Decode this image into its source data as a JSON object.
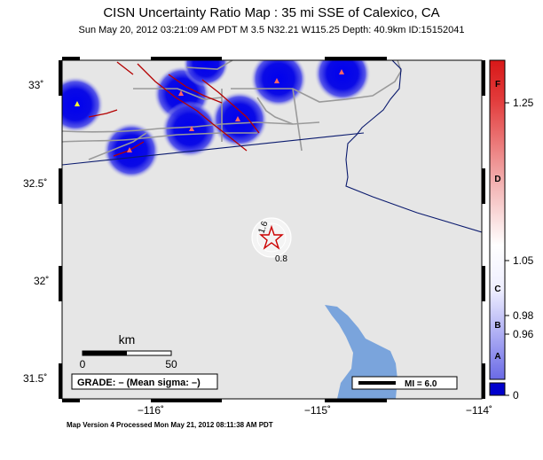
{
  "header": {
    "title": "CISN Uncertainty Ratio Map : 35 mi SSE of Calexico, CA",
    "subtitle": "Sun May 20, 2012 03:21:09 AM PDT   M 3.5   N32.21 W115.25   Depth: 40.9km   ID:15152041"
  },
  "axes": {
    "lat_ticks": [
      "33˚",
      "32.5˚",
      "32˚",
      "31.5˚"
    ],
    "lon_ticks": [
      "−116˚",
      "−115˚",
      "−114˚"
    ]
  },
  "scale_bar": {
    "title": "km",
    "start": "0",
    "end": "50"
  },
  "grade_box": {
    "text": "GRADE: – (Mean sigma: –)"
  },
  "mi_legend": {
    "text": "MI = 6.0"
  },
  "contours": {
    "inner": "1.6",
    "outer": "0.8"
  },
  "colorbar": {
    "grades": [
      "F",
      "D",
      "C",
      "B",
      "A"
    ],
    "values": [
      "1.25",
      "1.05",
      "0.98",
      "0.96",
      "0"
    ]
  },
  "footer": {
    "text": "Map Version 4 Processed Mon May 21, 2012 08:11:38 AM PDT"
  },
  "colors": {
    "station_blur": "#1a1ad6",
    "water": "#7aa4dc",
    "faults": "#b40000",
    "roads": "#9a9a9a",
    "border": "#0a1a6e",
    "epicenter": "#cc0000"
  },
  "icons": {
    "epicenter": "star-icon",
    "station": "triangle-icon"
  }
}
